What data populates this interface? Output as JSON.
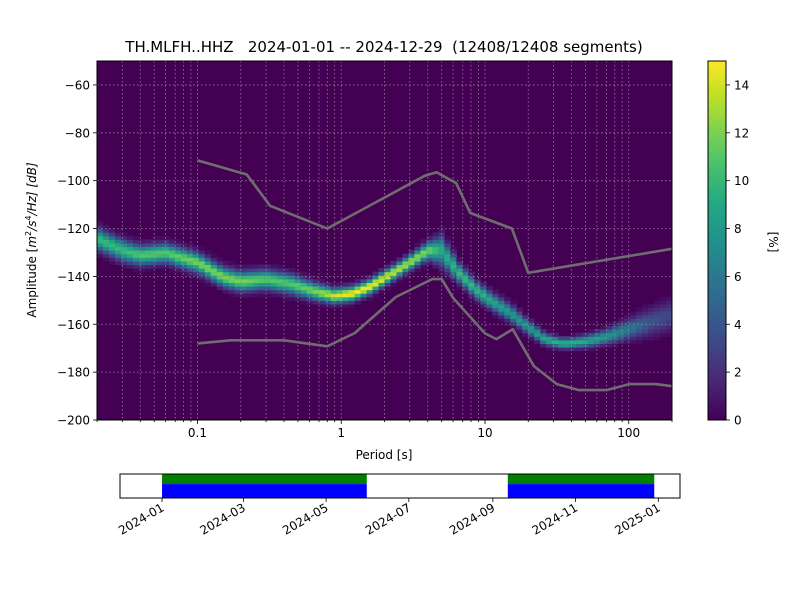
{
  "chart_data": [
    {
      "type": "heatmap",
      "subtype": "probabilistic-power-spectral-density",
      "title": "TH.MLFH..HHZ   2024-01-01 -- 2024-12-29  (12408/12408 segments)",
      "xlabel": "Period [s]",
      "ylabel_parts": {
        "prefix": "Amplitude [",
        "m": "m",
        "e2": "2",
        "s": "/s",
        "e4": "4",
        "hz": "/Hz] [dB]"
      },
      "x_scale": "log",
      "xlim": [
        0.02,
        200
      ],
      "ylim": [
        -200,
        -50
      ],
      "grid": true,
      "x_ticks": [
        0.1,
        1,
        10,
        100
      ],
      "x_tick_labels": [
        "0.1",
        "1",
        "10",
        "100"
      ],
      "y_ticks": [
        -200,
        -180,
        -160,
        -140,
        -120,
        -100,
        -80,
        -60
      ],
      "y_tick_labels": [
        "−200",
        "−180",
        "−160",
        "−140",
        "−120",
        "−100",
        "−80",
        "−60"
      ],
      "colorbar": {
        "label": "[%]",
        "range": [
          0,
          15
        ],
        "ticks": [
          0,
          2,
          4,
          6,
          8,
          10,
          12,
          14
        ],
        "tick_labels": [
          "0",
          "2",
          "4",
          "6",
          "8",
          "10",
          "12",
          "14"
        ],
        "colormap": "viridis",
        "background_color": "#440154"
      },
      "mode_curve": {
        "period": [
          0.02,
          0.03,
          0.04,
          0.06,
          0.1,
          0.15,
          0.2,
          0.3,
          0.45,
          0.65,
          0.9,
          1.2,
          1.6,
          2.2,
          3.0,
          4.0,
          5.0,
          6.5,
          8.5,
          11,
          15,
          20,
          26,
          35,
          50,
          70,
          100,
          140,
          200
        ],
        "amplitude": [
          -124,
          -129,
          -131,
          -130,
          -134,
          -140,
          -142,
          -141,
          -143,
          -146,
          -148,
          -147,
          -144,
          -139,
          -134,
          -129,
          -129,
          -138,
          -145,
          -150,
          -155,
          -161,
          -166,
          -168,
          -167,
          -165,
          -162,
          -159,
          -156
        ],
        "peak_percent": [
          10,
          10,
          11,
          11,
          12,
          12,
          12,
          11,
          11,
          12,
          14,
          15,
          15,
          14,
          13,
          12,
          9,
          10,
          10,
          9,
          8,
          8,
          9,
          10,
          9,
          8,
          6,
          4,
          3
        ],
        "band_width_db": [
          9,
          9,
          8,
          8,
          8,
          8,
          8,
          8,
          8,
          7,
          6,
          6,
          6,
          6,
          6,
          7,
          12,
          8,
          7,
          7,
          7,
          6,
          5,
          4,
          5,
          6,
          8,
          11,
          13
        ]
      },
      "noise_models": {
        "color": "#6e6e6e",
        "high_noise_model": {
          "period": [
            0.1,
            0.22,
            0.32,
            0.8,
            3.8,
            4.6,
            6.3,
            7.9,
            15.4,
            20,
            354.8
          ],
          "amplitude": [
            -91.5,
            -97.4,
            -110.5,
            -120.0,
            -98.0,
            -96.5,
            -101.0,
            -113.5,
            -120.0,
            -138.5,
            -126.0
          ]
        },
        "low_noise_model": {
          "period": [
            0.1,
            0.17,
            0.4,
            0.8,
            1.24,
            2.4,
            4.3,
            5.0,
            6.0,
            10.0,
            12.0,
            15.6,
            21.9,
            31.6,
            45.0,
            70.0,
            101.0,
            154.0,
            328.0
          ],
          "amplitude": [
            -168.0,
            -166.7,
            -166.7,
            -169.2,
            -163.7,
            -148.6,
            -141.1,
            -141.1,
            -149.0,
            -163.8,
            -166.2,
            -162.1,
            -177.5,
            -185.0,
            -187.5,
            -187.5,
            -185.0,
            -185.0,
            -187.5
          ]
        }
      }
    },
    {
      "type": "timeline",
      "subtype": "data-coverage",
      "x_start": "2023-12-01",
      "x_end": "2025-01-17",
      "x_ticks": [
        "2024-01-01",
        "2024-03-01",
        "2024-05-01",
        "2024-07-01",
        "2024-09-01",
        "2024-11-01",
        "2025-01-01"
      ],
      "x_tick_labels": [
        "2024-01",
        "2024-03",
        "2024-05",
        "2024-07",
        "2024-09",
        "2024-11",
        "2025-01"
      ],
      "available_color": "#008000",
      "processed_color": "#0000ff",
      "intervals": [
        {
          "start": "2024-01-01",
          "end": "2024-05-31"
        },
        {
          "start": "2024-09-12",
          "end": "2024-12-29"
        }
      ]
    }
  ]
}
